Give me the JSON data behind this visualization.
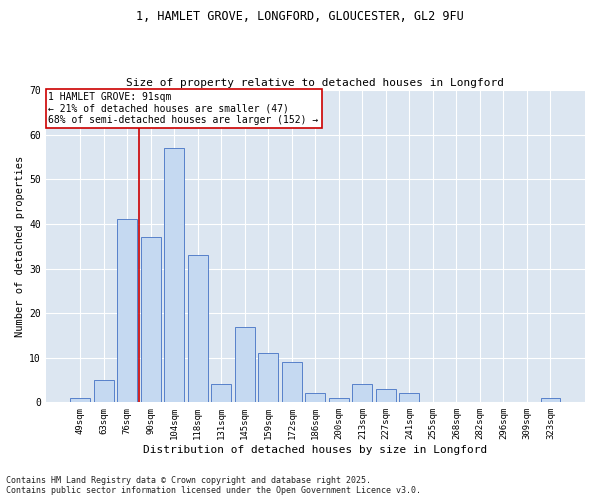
{
  "title1": "1, HAMLET GROVE, LONGFORD, GLOUCESTER, GL2 9FU",
  "title2": "Size of property relative to detached houses in Longford",
  "xlabel": "Distribution of detached houses by size in Longford",
  "ylabel": "Number of detached properties",
  "footnote": "Contains HM Land Registry data © Crown copyright and database right 2025.\nContains public sector information licensed under the Open Government Licence v3.0.",
  "bin_labels": [
    "49sqm",
    "63sqm",
    "76sqm",
    "90sqm",
    "104sqm",
    "118sqm",
    "131sqm",
    "145sqm",
    "159sqm",
    "172sqm",
    "186sqm",
    "200sqm",
    "213sqm",
    "227sqm",
    "241sqm",
    "255sqm",
    "268sqm",
    "282sqm",
    "296sqm",
    "309sqm",
    "323sqm"
  ],
  "bar_values": [
    1,
    5,
    41,
    37,
    57,
    33,
    4,
    17,
    11,
    9,
    2,
    1,
    4,
    3,
    2,
    0,
    0,
    0,
    0,
    0,
    1
  ],
  "bar_color": "#c5d9f1",
  "bar_edge_color": "#4472c4",
  "property_line_bin": 3,
  "property_line_label": "1 HAMLET GROVE: 91sqm",
  "annotation_line1": "← 21% of detached houses are smaller (47)",
  "annotation_line2": "68% of semi-detached houses are larger (152) →",
  "annotation_box_color": "#ffffff",
  "annotation_box_edge": "#cc0000",
  "line_color": "#cc0000",
  "ylim": [
    0,
    70
  ],
  "yticks": [
    0,
    10,
    20,
    30,
    40,
    50,
    60,
    70
  ],
  "plot_bg_color": "#dce6f1",
  "grid_color": "#ffffff",
  "title1_fontsize": 8.5,
  "title2_fontsize": 8.0,
  "xlabel_fontsize": 8.0,
  "ylabel_fontsize": 7.5,
  "tick_fontsize": 6.5,
  "annot_fontsize": 7.0,
  "footnote_fontsize": 6.0
}
